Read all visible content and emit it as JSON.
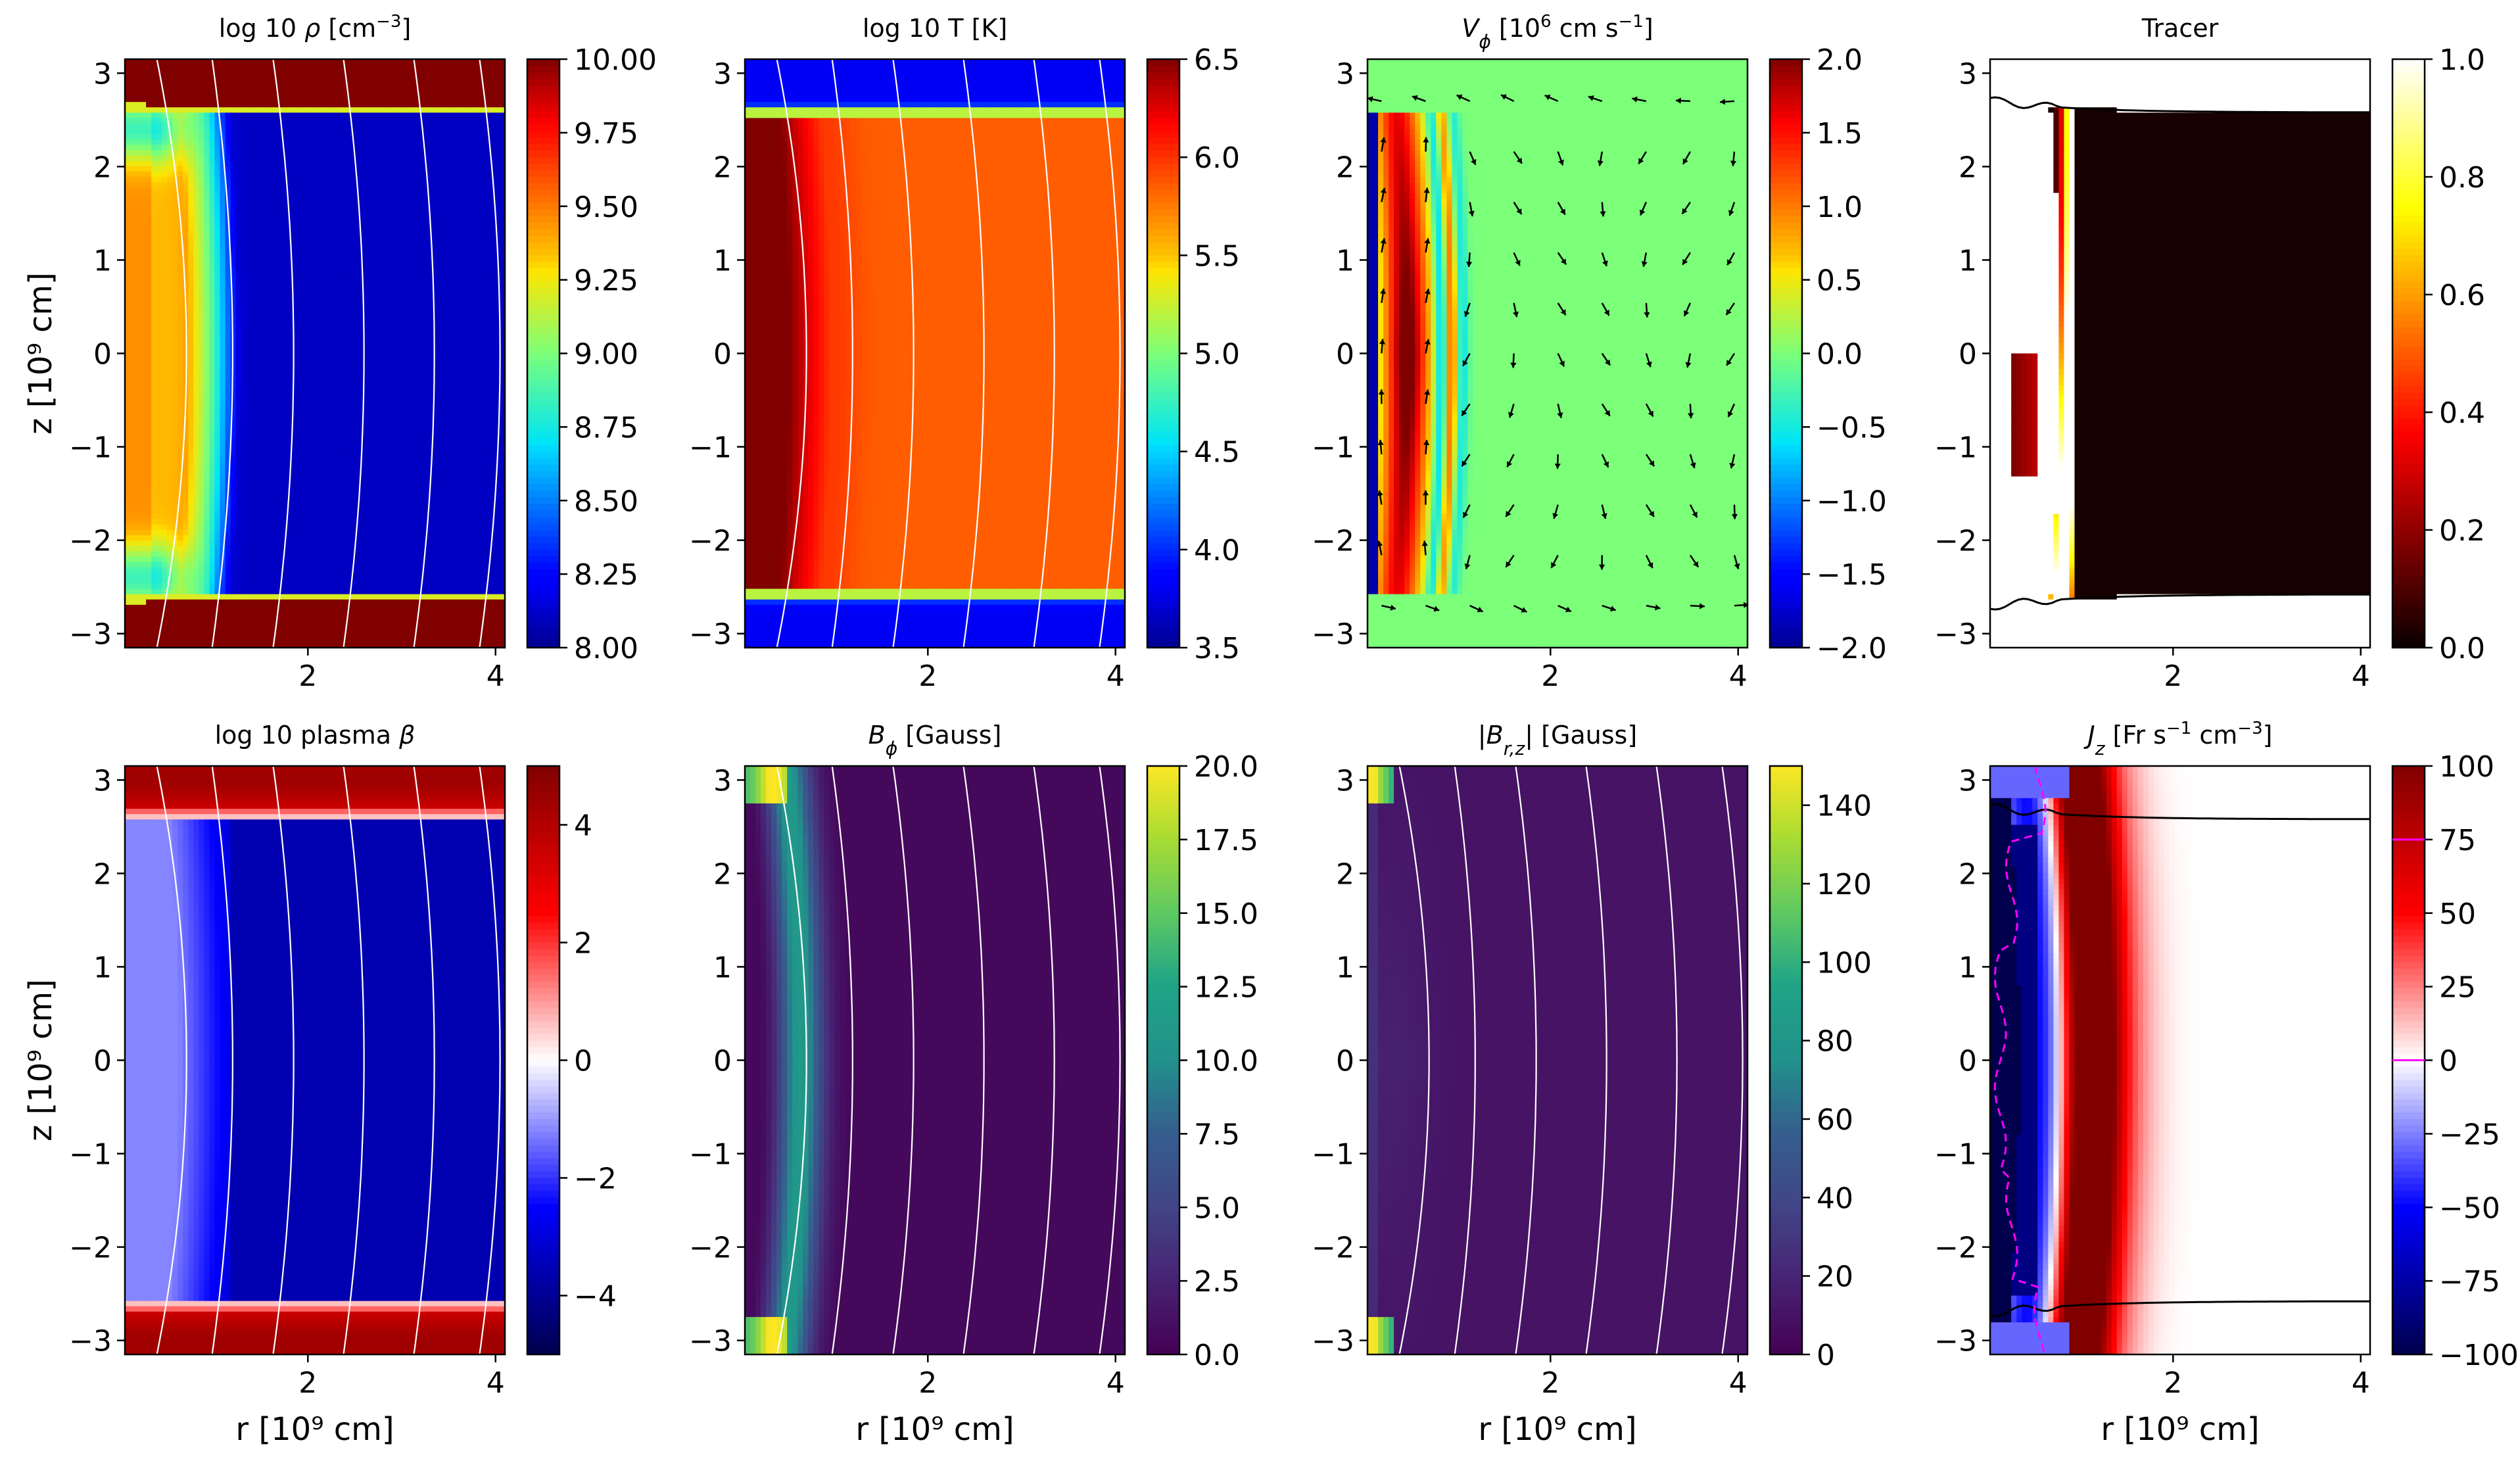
{
  "chart_data": {
    "type": "heatmap",
    "layout": "2x4 grid of colormap panels",
    "panels": [
      {
        "id": "p1",
        "title_parts": [
          {
            "t": "log 10 "
          },
          {
            "t": "ρ",
            "it": true
          },
          {
            "t": " [cm"
          },
          {
            "t": "−3",
            "sup": true
          },
          {
            "t": "]"
          }
        ],
        "colormap": "jet",
        "vmin": 8.0,
        "vmax": 10.0,
        "colorbar_ticks": [
          "8.00",
          "8.25",
          "8.50",
          "8.75",
          "9.00",
          "9.25",
          "9.50",
          "9.75",
          "10.00"
        ],
        "field": "density",
        "overlays": [
          "field-lines"
        ],
        "xlabel": "",
        "ylabel": "z [10⁹ cm]",
        "xticks": [
          "2",
          "4"
        ],
        "yticks": [
          "3",
          "2",
          "1",
          "0",
          "−1",
          "−2",
          "−3"
        ]
      },
      {
        "id": "p2",
        "title_parts": [
          {
            "t": "log 10  T [K]"
          }
        ],
        "colormap": "jet",
        "vmin": 3.5,
        "vmax": 6.5,
        "colorbar_ticks": [
          "3.5",
          "4.0",
          "4.5",
          "5.0",
          "5.5",
          "6.0",
          "6.5"
        ],
        "field": "temperature",
        "overlays": [
          "field-lines"
        ],
        "xlabel": "",
        "ylabel": "",
        "xticks": [
          "2",
          "4"
        ],
        "yticks": [
          "3",
          "2",
          "1",
          "0",
          "−1",
          "−2",
          "−3"
        ]
      },
      {
        "id": "p3",
        "title_parts": [
          {
            "t": "V",
            "it": true
          },
          {
            "t": "ϕ",
            "it": true,
            "sub": true
          },
          {
            "t": " [10"
          },
          {
            "t": "6",
            "sup": true
          },
          {
            "t": " cm s"
          },
          {
            "t": "−1",
            "sup": true
          },
          {
            "t": "]"
          }
        ],
        "colormap": "jet",
        "vmin": -2.0,
        "vmax": 2.0,
        "colorbar_ticks": [
          "−2.0",
          "−1.5",
          "−1.0",
          "−0.5",
          "0.0",
          "0.5",
          "1.0",
          "1.5",
          "2.0"
        ],
        "field": "vphi",
        "overlays": [
          "arrows"
        ],
        "xlabel": "",
        "ylabel": "",
        "xticks": [
          "2",
          "4"
        ],
        "yticks": [
          "3",
          "2",
          "1",
          "0",
          "−1",
          "−2",
          "−3"
        ]
      },
      {
        "id": "p4",
        "title_parts": [
          {
            "t": "Tracer"
          }
        ],
        "colormap": "hot",
        "vmin": 0.0,
        "vmax": 1.0,
        "colorbar_ticks": [
          "0.0",
          "0.2",
          "0.4",
          "0.6",
          "0.8",
          "1.0"
        ],
        "field": "tracer",
        "overlays": [
          "black-contour"
        ],
        "xlabel": "",
        "ylabel": "",
        "xticks": [
          "2",
          "4"
        ],
        "yticks": [
          "3",
          "2",
          "1",
          "0",
          "−1",
          "−2",
          "−3"
        ]
      },
      {
        "id": "p5",
        "title_parts": [
          {
            "t": "log 10 plasma "
          },
          {
            "t": "β",
            "it": true
          }
        ],
        "colormap": "seismic",
        "vmin": -5.0,
        "vmax": 5.0,
        "colorbar_ticks": [
          "−4",
          "−2",
          "0",
          "2",
          "4"
        ],
        "colorbar_tick_values": [
          -4,
          -2,
          0,
          2,
          4
        ],
        "field": "beta",
        "overlays": [
          "field-lines"
        ],
        "xlabel": "r [10⁹ cm]",
        "ylabel": "z [10⁹ cm]",
        "xticks": [
          "2",
          "4"
        ],
        "yticks": [
          "3",
          "2",
          "1",
          "0",
          "−1",
          "−2",
          "−3"
        ]
      },
      {
        "id": "p6",
        "title_parts": [
          {
            "t": "B",
            "it": true
          },
          {
            "t": "ϕ",
            "it": true,
            "sub": true
          },
          {
            "t": " [Gauss]"
          }
        ],
        "colormap": "viridis",
        "vmin": 0.0,
        "vmax": 20.0,
        "colorbar_ticks": [
          "0.0",
          "2.5",
          "5.0",
          "7.5",
          "10.0",
          "12.5",
          "15.0",
          "17.5",
          "20.0"
        ],
        "field": "bphi",
        "overlays": [
          "field-lines"
        ],
        "xlabel": "r [10⁹ cm]",
        "ylabel": "",
        "xticks": [
          "2",
          "4"
        ],
        "yticks": [
          "3",
          "2",
          "1",
          "0",
          "−1",
          "−2",
          "−3"
        ]
      },
      {
        "id": "p7",
        "title_parts": [
          {
            "t": "|"
          },
          {
            "t": "B",
            "it": true
          },
          {
            "t": "r,z",
            "it": true,
            "sub": true
          },
          {
            "t": "| [Gauss]"
          }
        ],
        "colormap": "viridis",
        "vmin": 0.0,
        "vmax": 150.0,
        "colorbar_ticks": [
          "0",
          "20",
          "40",
          "60",
          "80",
          "100",
          "120",
          "140"
        ],
        "colorbar_tick_values": [
          0,
          20,
          40,
          60,
          80,
          100,
          120,
          140
        ],
        "field": "brz",
        "overlays": [
          "field-lines"
        ],
        "xlabel": "r [10⁹ cm]",
        "ylabel": "",
        "xticks": [
          "2",
          "4"
        ],
        "yticks": [
          "3",
          "2",
          "1",
          "0",
          "−1",
          "−2",
          "−3"
        ]
      },
      {
        "id": "p8",
        "title_parts": [
          {
            "t": "J",
            "it": true
          },
          {
            "t": "z",
            "it": true,
            "sub": true
          },
          {
            "t": " [Fr s"
          },
          {
            "t": "−1",
            "sup": true
          },
          {
            "t": " cm"
          },
          {
            "t": "−3",
            "sup": true
          },
          {
            "t": "]"
          }
        ],
        "colormap": "seismic",
        "vmin": -100.0,
        "vmax": 100.0,
        "colorbar_ticks": [
          "−100",
          "−75",
          "−50",
          "−25",
          "0",
          "25",
          "50",
          "75",
          "100"
        ],
        "colorbar_marks": [
          0,
          75
        ],
        "field": "jz",
        "overlays": [
          "black-contour",
          "magenta-dashed"
        ],
        "xlabel": "r [10⁹ cm]",
        "ylabel": "",
        "xticks": [
          "2",
          "4"
        ],
        "yticks": [
          "3",
          "2",
          "1",
          "0",
          "−1",
          "−2",
          "−3"
        ]
      }
    ],
    "x_data_range": [
      0.05,
      4.1
    ],
    "y_data_range": [
      -3.15,
      3.15
    ],
    "x_tick_values": [
      2,
      4
    ],
    "y_tick_values": [
      3,
      2,
      1,
      0,
      -1,
      -2,
      -3
    ]
  },
  "colors": {
    "field_lines": "#ffffff",
    "arrows": "#000000",
    "contour": "#000000",
    "magenta": "#ff00ff"
  }
}
